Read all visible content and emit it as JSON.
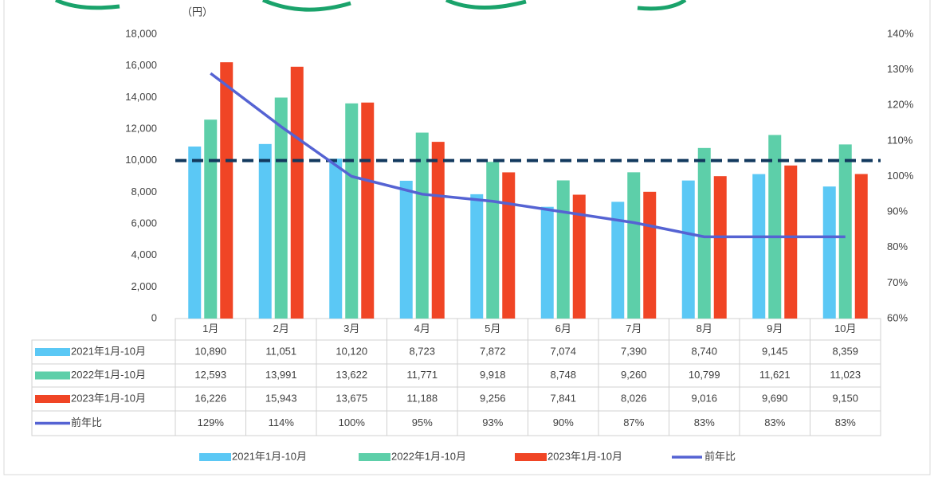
{
  "chart_data": {
    "type": "bar",
    "y_axis_title": "（円）",
    "categories": [
      "1月",
      "2月",
      "3月",
      "4月",
      "5月",
      "6月",
      "7月",
      "8月",
      "9月",
      "10月"
    ],
    "series": [
      {
        "name": "2021年1月-10月",
        "color": "#5bc8f5",
        "values": [
          10890,
          11051,
          10120,
          8723,
          7872,
          7074,
          7390,
          8740,
          9145,
          8359
        ],
        "value_labels": [
          "10,890",
          "11,051",
          "10,120",
          "8,723",
          "7,872",
          "7,074",
          "7,390",
          "8,740",
          "9,145",
          "8,359"
        ]
      },
      {
        "name": "2022年1月-10月",
        "color": "#5dcfa9",
        "values": [
          12593,
          13991,
          13622,
          11771,
          9918,
          8748,
          9260,
          10799,
          11621,
          11023
        ],
        "value_labels": [
          "12,593",
          "13,991",
          "13,622",
          "11,771",
          "9,918",
          "8,748",
          "9,260",
          "10,799",
          "11,621",
          "11,023"
        ]
      },
      {
        "name": "2023年1月-10月",
        "color": "#f04525",
        "values": [
          16226,
          15943,
          13675,
          11188,
          9256,
          7841,
          8026,
          9016,
          9690,
          9150
        ],
        "value_labels": [
          "16,226",
          "15,943",
          "13,675",
          "11,188",
          "9,256",
          "7,841",
          "8,026",
          "9,016",
          "9,690",
          "9,150"
        ]
      },
      {
        "name": "前年比",
        "type": "line",
        "axis": "y2",
        "color": "#5563d3",
        "values": [
          129,
          114,
          100,
          95,
          93,
          90,
          87,
          83,
          83,
          83
        ],
        "value_labels": [
          "129%",
          "114%",
          "100%",
          "95%",
          "93%",
          "90%",
          "87%",
          "83%",
          "83%",
          "83%"
        ]
      }
    ],
    "ylim": [
      0,
      18000
    ],
    "yticks": [
      0,
      {
        "value": 2000,
        "label": "2,000"
      },
      {
        "value": 4000,
        "label": "4,000"
      },
      {
        "value": 6000,
        "label": "6,000"
      },
      {
        "value": 8000,
        "label": "8,000"
      },
      {
        "value": 10000,
        "label": "10,000"
      },
      {
        "value": 12000,
        "label": "12,000"
      },
      {
        "value": 14000,
        "label": "14,000"
      },
      {
        "value": 16000,
        "label": "16,000"
      },
      {
        "value": 18000,
        "label": "18,000"
      }
    ],
    "y2lim": [
      60,
      140
    ],
    "y2ticks": [
      {
        "value": 60,
        "label": "60%"
      },
      {
        "value": 70,
        "label": "70%"
      },
      {
        "value": 80,
        "label": "80%"
      },
      {
        "value": 90,
        "label": "90%"
      },
      {
        "value": 100,
        "label": "100%"
      },
      {
        "value": 110,
        "label": "110%"
      },
      {
        "value": 120,
        "label": "120%"
      },
      {
        "value": 130,
        "label": "130%"
      },
      {
        "value": 140,
        "label": "140%"
      }
    ],
    "reference_line": {
      "value": 10000,
      "color": "#12395e",
      "dashed": true
    },
    "grid": false,
    "data_table": true,
    "legend": "bottom"
  }
}
